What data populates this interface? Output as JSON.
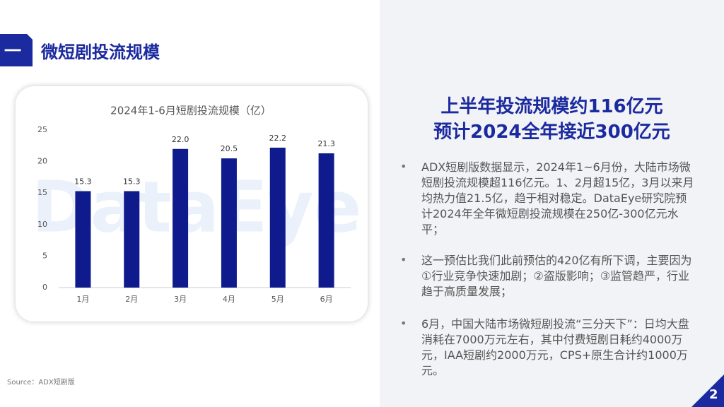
{
  "header": {
    "number": "一",
    "title": "微短剧投流规模"
  },
  "chart_data": {
    "type": "bar",
    "title": "2024年1-6月短剧投流规模（亿）",
    "watermark": "DataEye",
    "categories": [
      "1月",
      "2月",
      "3月",
      "4月",
      "5月",
      "6月"
    ],
    "values": [
      15.3,
      15.3,
      22.0,
      20.5,
      22.2,
      21.3
    ],
    "value_labels": [
      "15.3",
      "15.3",
      "22.0",
      "20.5",
      "22.2",
      "21.3"
    ],
    "color": "#0f1a8c",
    "ylim": [
      0,
      25
    ],
    "yticks": [
      0,
      5,
      10,
      15,
      20,
      25
    ],
    "grid": false
  },
  "panel": {
    "headline": [
      "上半年投流规模约116亿元",
      "预计2024全年接近300亿元"
    ],
    "bullets": [
      "ADX短剧版数据显示，2024年1~6月份，大陆市场微短剧投流规模超116亿元。1、2月超15亿，3月以来月均热力值21.5亿，趋于相对稳定。DataEye研究院预计2024年全年微短剧投流规模在250亿-300亿元水平；",
      "这一预估比我们此前预估的420亿有所下调，主要因为①行业竞争快速加剧；②盗版影响；③监管趋严，行业趋于高质量发展；",
      "6月，中国大陆市场微短剧投流“三分天下”：日均大盘消耗在7000万元左右，其中付费短剧日耗约4000万元，IAA短剧约2000万元，CPS+原生合计约1000万元。"
    ]
  },
  "source": "Source：ADX短剧版",
  "page": 2
}
